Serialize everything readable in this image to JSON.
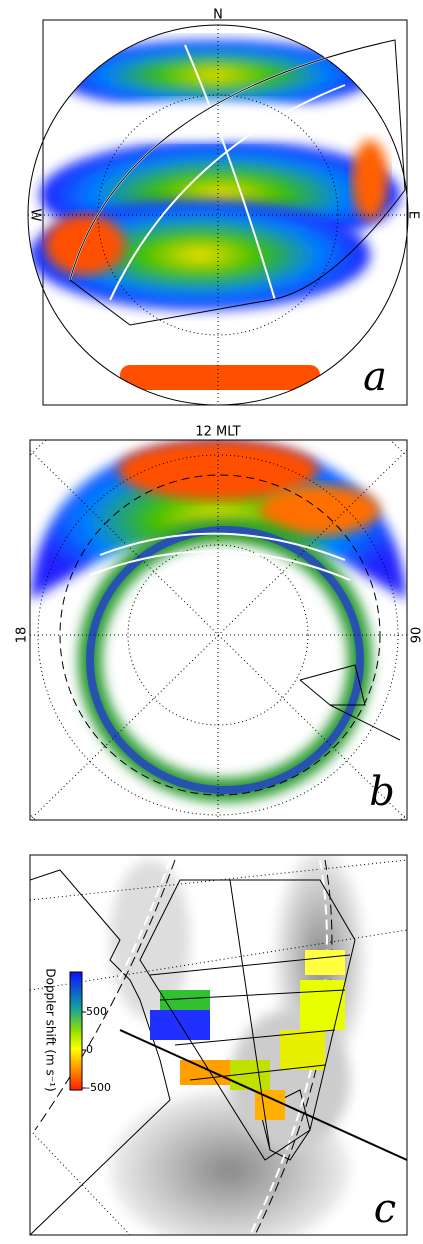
{
  "panels": [
    {
      "label": "a",
      "north": "N",
      "west": "W",
      "east": "E"
    },
    {
      "label": "b",
      "top": "12 MLT",
      "left": "18",
      "right": "06"
    },
    {
      "label": "c",
      "colorbar": {
        "title": "Doppler shift (m s⁻¹)",
        "ticks": [
          500,
          0,
          -500
        ]
      }
    }
  ]
}
